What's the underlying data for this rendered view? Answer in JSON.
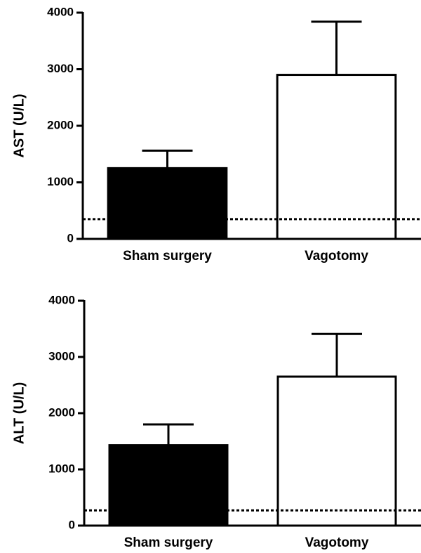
{
  "chart_data": [
    {
      "type": "bar",
      "ylabel": "AST (U/L)",
      "categories": [
        "Sham surgery",
        "Vagotomy"
      ],
      "values": [
        1250,
        2900
      ],
      "errors": [
        310,
        940
      ],
      "colors": [
        "#000000",
        "#ffffff"
      ],
      "reference_line": 350,
      "ylim": [
        0,
        4000
      ],
      "yticks": [
        0,
        1000,
        2000,
        3000,
        4000
      ]
    },
    {
      "type": "bar",
      "ylabel": "ALT (U/L)",
      "categories": [
        "Sham surgery",
        "Vagotomy"
      ],
      "values": [
        1430,
        2650
      ],
      "errors": [
        370,
        760
      ],
      "colors": [
        "#000000",
        "#ffffff"
      ],
      "reference_line": 270,
      "ylim": [
        0,
        4000
      ],
      "yticks": [
        0,
        1000,
        2000,
        3000,
        4000
      ]
    }
  ]
}
